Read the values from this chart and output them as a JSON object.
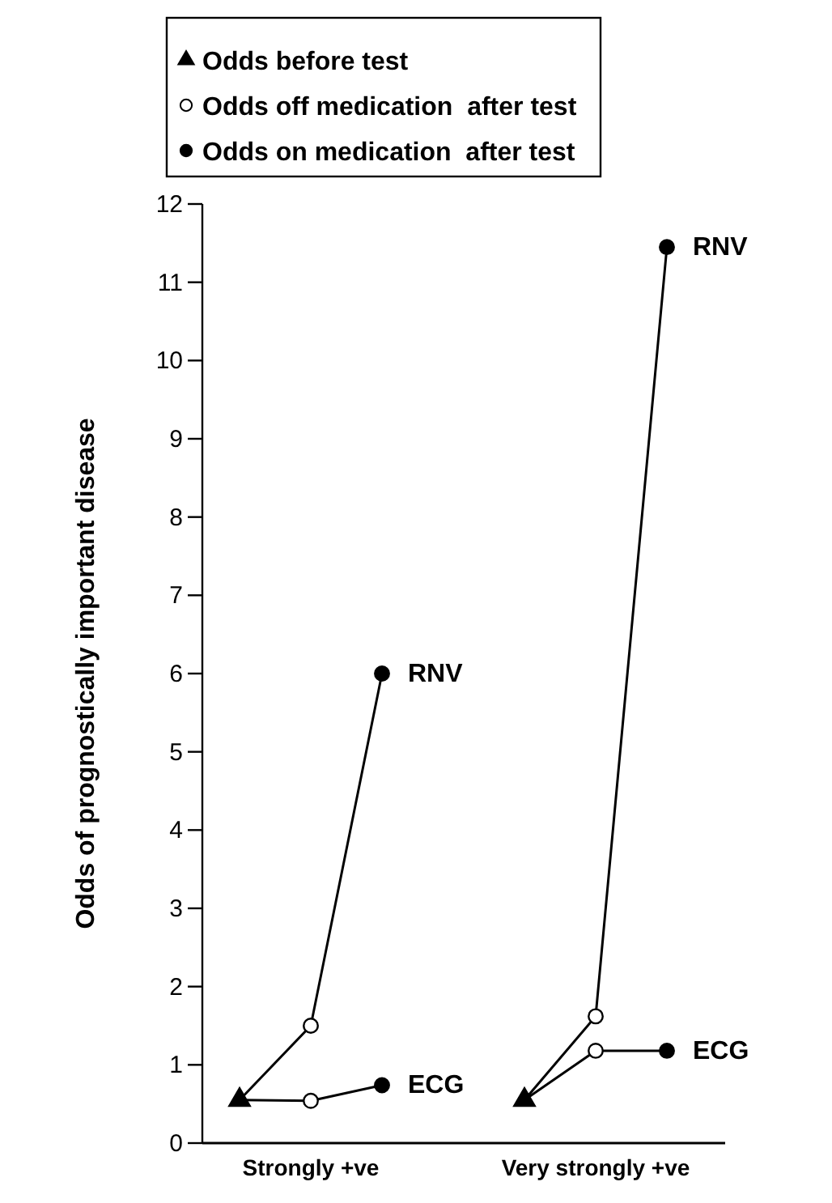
{
  "chart_data": {
    "type": "line",
    "ylabel": "Odds of prognostically important disease",
    "categories": [
      null,
      "Strongly +ve",
      null,
      null,
      null,
      "Very strongly +ve",
      null
    ],
    "ylim": [
      0,
      12
    ],
    "yticks": [
      0,
      1,
      2,
      3,
      4,
      5,
      6,
      7,
      8,
      9,
      10,
      11,
      12
    ],
    "grid": false,
    "legend": "top",
    "series": [
      {
        "name": "RNV",
        "color": "#000000",
        "marker": "none",
        "values": [
          0.55,
          1.5,
          6.0,
          null,
          0.55,
          1.62,
          11.45
        ]
      },
      {
        "name": "ECG",
        "color": "#000000",
        "marker": "none",
        "values": [
          0.55,
          0.54,
          0.74,
          null,
          0.55,
          1.18,
          1.18
        ]
      },
      {
        "name": "Odds before test",
        "type": "scatter",
        "color": "#000000",
        "marker": "triangle",
        "values": [
          0.55,
          null,
          null,
          null,
          0.55,
          null,
          null
        ]
      },
      {
        "name": "Odds off medication  after test",
        "type": "scatter",
        "color": "#ffffff",
        "marker": "circle",
        "values": [
          null,
          1.5,
          null,
          null,
          null,
          1.62,
          null
        ]
      },
      {
        "type": "scatter",
        "color": "#ffffff",
        "marker": "circle",
        "values": [
          null,
          0.54,
          null,
          null,
          null,
          1.18,
          null
        ]
      },
      {
        "name": "Odds on medication  after test",
        "type": "scatter",
        "color": "#000000",
        "marker": "circle",
        "values": [
          null,
          null,
          6.0,
          null,
          null,
          null,
          11.45
        ]
      },
      {
        "type": "scatter",
        "color": "#000000",
        "marker": "circle",
        "values": [
          null,
          null,
          0.74,
          null,
          null,
          null,
          1.18
        ]
      }
    ]
  }
}
